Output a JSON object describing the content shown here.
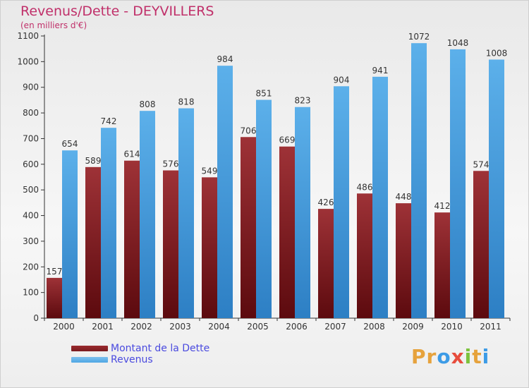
{
  "header": {
    "title": "Revenus/Dette - DEYVILLERS",
    "subtitle": "(en milliers d'€)"
  },
  "legend": [
    {
      "label": "Montant de la Dette",
      "color": "#7a1b1f"
    },
    {
      "label": "Revenus",
      "color": "#4fa6e4"
    }
  ],
  "logo": {
    "text": "Proxiti",
    "colors": [
      "#e6a23c",
      "#e6a23c",
      "#3c9be6",
      "#e74c3c",
      "#7cc23c",
      "#e6a23c",
      "#3c9be6"
    ]
  },
  "chart_data": {
    "type": "bar",
    "title": "Revenus/Dette - DEYVILLERS",
    "categories": [
      "2000",
      "2001",
      "2002",
      "2003",
      "2004",
      "2005",
      "2006",
      "2007",
      "2008",
      "2009",
      "2010",
      "2011"
    ],
    "series": [
      {
        "name": "Montant de la Dette",
        "color": "#7a1b1f",
        "values": [
          157,
          589,
          614,
          576,
          549,
          706,
          669,
          426,
          486,
          448,
          412,
          574
        ]
      },
      {
        "name": "Revenus",
        "color": "#4fa6e4",
        "values": [
          654,
          742,
          808,
          818,
          984,
          851,
          823,
          904,
          941,
          1072,
          1048,
          1008
        ]
      }
    ],
    "ylim": [
      0,
      1100
    ],
    "yticks": [
      0,
      100,
      200,
      300,
      400,
      500,
      600,
      700,
      800,
      900,
      1000,
      1100
    ],
    "grid": false,
    "legend_position": "bottom-left"
  }
}
